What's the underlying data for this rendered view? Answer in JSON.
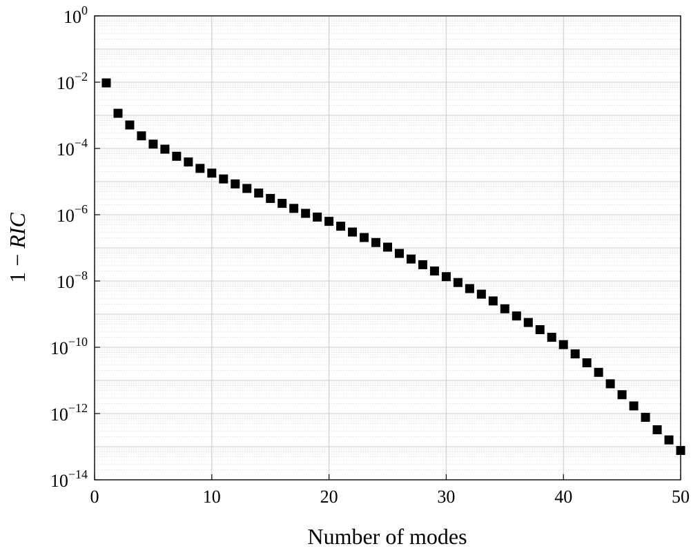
{
  "chart_data": {
    "type": "scatter",
    "title": "",
    "xlabel": "Number of modes",
    "ylabel": {
      "prefix": "1 − ",
      "italic": "RIC"
    },
    "xlim": [
      0,
      50
    ],
    "ylim": [
      1e-14,
      1
    ],
    "yscale": "log",
    "grid": true,
    "grid_minor": true,
    "legend": "none",
    "marker": "square",
    "marker_color": "#000000",
    "x_ticks": [
      "0",
      "10",
      "20",
      "30",
      "40",
      "50"
    ],
    "y_ticks": [
      {
        "base": "10",
        "exp": "0",
        "value": 1.0
      },
      {
        "base": "10",
        "exp": "−2",
        "value": 0.01
      },
      {
        "base": "10",
        "exp": "−4",
        "value": 0.0001
      },
      {
        "base": "10",
        "exp": "−6",
        "value": 1e-06
      },
      {
        "base": "10",
        "exp": "−8",
        "value": 1e-08
      },
      {
        "base": "10",
        "exp": "−10",
        "value": 1e-10
      },
      {
        "base": "10",
        "exp": "−12",
        "value": 1e-12
      },
      {
        "base": "10",
        "exp": "−14",
        "value": 1e-14
      }
    ],
    "series": [
      {
        "x": [
          1,
          2,
          3,
          4,
          5,
          6,
          7,
          8,
          9,
          10,
          11,
          12,
          13,
          14,
          15,
          16,
          17,
          18,
          19,
          20,
          21,
          22,
          23,
          24,
          25,
          26,
          27,
          28,
          29,
          30,
          31,
          32,
          33,
          34,
          35,
          36,
          37,
          38,
          39,
          40,
          41,
          42,
          43,
          44,
          45,
          46,
          47,
          48,
          49,
          50
        ],
        "y": [
          0.0095,
          0.00115,
          0.00051,
          0.00024,
          0.000135,
          9.5e-05,
          5.8e-05,
          3.9e-05,
          2.5e-05,
          1.8e-05,
          1.2e-05,
          8.5e-06,
          6.2e-06,
          4.5e-06,
          3.1e-06,
          2.2e-06,
          1.55e-06,
          1.1e-06,
          8.5e-07,
          6.3e-07,
          4.5e-07,
          3e-07,
          2.05e-07,
          1.45e-07,
          1.05e-07,
          6.8e-08,
          4.6e-08,
          3.1e-08,
          2e-08,
          1.35e-08,
          9e-09,
          5.9e-09,
          4e-09,
          2.5e-09,
          1.45e-09,
          8.8e-10,
          5.6e-10,
          3.4e-10,
          2e-10,
          1.2e-10,
          6.3e-11,
          3.4e-11,
          1.75e-11,
          7.9e-12,
          3.7e-12,
          1.7e-12,
          7.7e-13,
          3.25e-13,
          1.6e-13,
          7.7e-14
        ]
      }
    ]
  }
}
